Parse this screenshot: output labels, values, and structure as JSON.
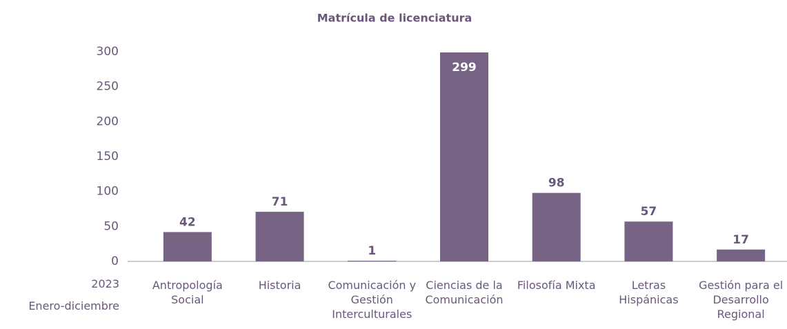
{
  "chart_data": {
    "type": "bar",
    "title": "Matrícula de licenciatura",
    "x_axis_label": [
      "2023",
      "Enero-diciembre"
    ],
    "categories": [
      "Antropología Social",
      "Historia",
      "Comunicación y Gestión Interculturales",
      "Ciencias de la Comunicación",
      "Filosofía Mixta",
      "Letras Hispánicas",
      "Gestión para el Desarrollo Regional"
    ],
    "values": [
      42,
      71,
      1,
      299,
      98,
      57,
      17
    ],
    "color": "#776384",
    "ylim": [
      0,
      300
    ],
    "yticks": [
      0,
      50,
      100,
      150,
      200,
      250,
      300
    ],
    "grid": false
  }
}
